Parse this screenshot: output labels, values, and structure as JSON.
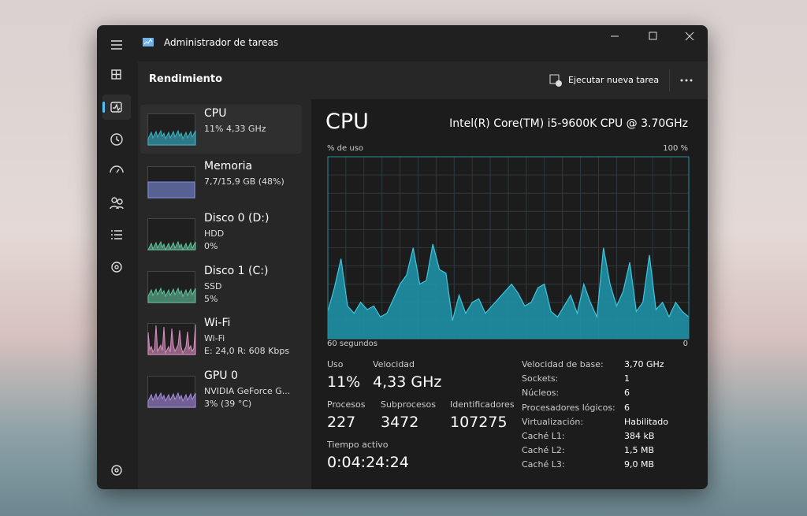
{
  "window": {
    "title": "Administrador de tareas"
  },
  "header": {
    "section": "Rendimiento",
    "action": "Ejecutar nueva tarea"
  },
  "sidebar": [
    {
      "name": "CPU",
      "lines": [
        "11% 4,33 GHz"
      ]
    },
    {
      "name": "Memoria",
      "lines": [
        "7,7/15,9 GB (48%)"
      ]
    },
    {
      "name": "Disco 0 (D:)",
      "lines": [
        "HDD",
        "0%"
      ]
    },
    {
      "name": "Disco 1 (C:)",
      "lines": [
        "SSD",
        "5%"
      ]
    },
    {
      "name": "Wi-Fi",
      "lines": [
        "Wi-Fi",
        "E: 24,0 R: 608 Kbps"
      ]
    },
    {
      "name": "GPU 0",
      "lines": [
        "NVIDIA GeForce G...",
        "3% (39 °C)"
      ]
    }
  ],
  "main": {
    "title": "CPU",
    "model": "Intel(R) Core(TM) i5-9600K CPU @ 3.70GHz",
    "graph": {
      "y_label": "% de uso",
      "max_label": "100 %",
      "x_label": "60 segundos",
      "x_end": "0",
      "ylim": [
        0,
        100
      ],
      "values": [
        15,
        28,
        44,
        18,
        14,
        20,
        16,
        18,
        12,
        14,
        22,
        30,
        35,
        50,
        30,
        32,
        52,
        38,
        36,
        10,
        24,
        14,
        20,
        22,
        14,
        18,
        22,
        26,
        30,
        25,
        18,
        20,
        28,
        30,
        15,
        12,
        18,
        24,
        14,
        30,
        20,
        12,
        50,
        30,
        18,
        26,
        42,
        15,
        20,
        46,
        16,
        20,
        12,
        20,
        15,
        12
      ]
    },
    "stats": [
      {
        "label": "Uso",
        "value": "11%"
      },
      {
        "label": "Velocidad",
        "value": "4,33 GHz"
      },
      {
        "label": "Procesos",
        "value": "227"
      },
      {
        "label": "Subprocesos",
        "value": "3472"
      },
      {
        "label": "Identificadores",
        "value": "107275"
      },
      {
        "label": "Tiempo activo",
        "value": "0:04:24:24"
      }
    ],
    "specs": [
      {
        "label": "Velocidad de base:",
        "value": "3,70 GHz"
      },
      {
        "label": "Sockets:",
        "value": "1"
      },
      {
        "label": "Núcleos:",
        "value": "6"
      },
      {
        "label": "Procesadores lógicos:",
        "value": "6"
      },
      {
        "label": "Virtualización:",
        "value": "Habilitado"
      },
      {
        "label": "Caché L1:",
        "value": "384 kB"
      },
      {
        "label": "Caché L2:",
        "value": "1,5 MB"
      },
      {
        "label": "Caché L3:",
        "value": "9,0 MB"
      }
    ]
  }
}
